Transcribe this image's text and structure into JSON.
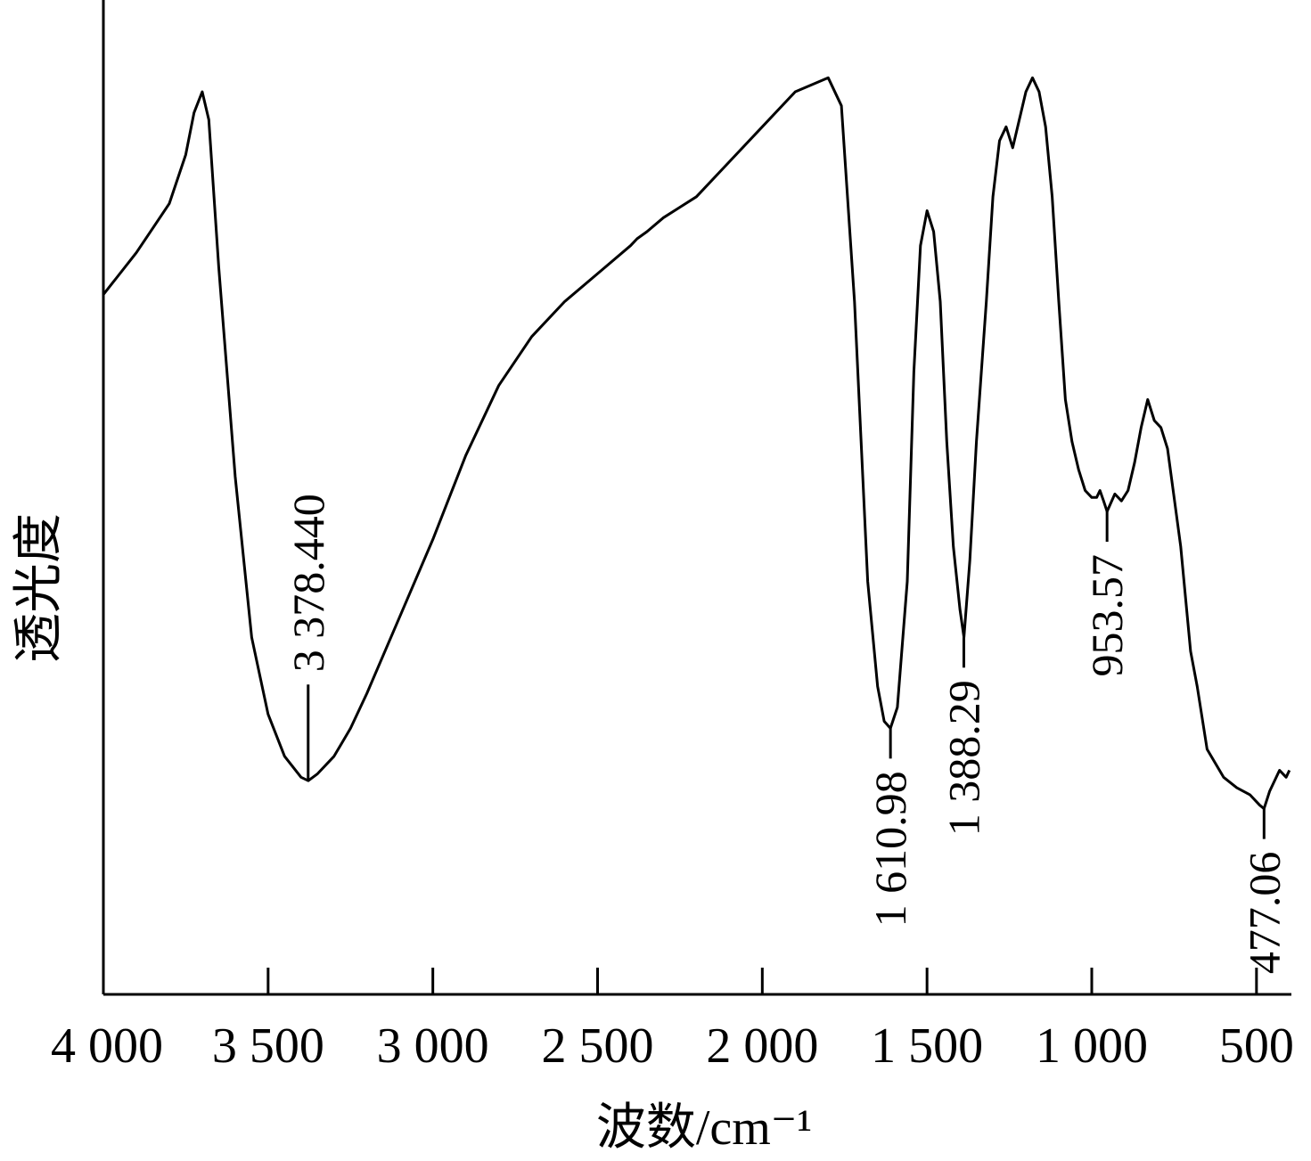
{
  "chart_data": {
    "type": "line",
    "xlabel": "波数/cm⁻¹",
    "ylabel": "透光度",
    "xlim": [
      4000,
      400
    ],
    "x_reversed": true,
    "y_ticks_shown": false,
    "grid": false,
    "xticks": [
      {
        "value": 4000,
        "label": "4 000"
      },
      {
        "value": 3500,
        "label": "3 500"
      },
      {
        "value": 3000,
        "label": "3 000"
      },
      {
        "value": 2500,
        "label": "2 500"
      },
      {
        "value": 2000,
        "label": "2 000"
      },
      {
        "value": 1500,
        "label": "1 500"
      },
      {
        "value": 1000,
        "label": "1 000"
      },
      {
        "value": 500,
        "label": "500"
      }
    ],
    "series": [
      {
        "points": [
          [
            4000,
            71
          ],
          [
            3900,
            77
          ],
          [
            3800,
            84
          ],
          [
            3750,
            91
          ],
          [
            3725,
            97
          ],
          [
            3700,
            100
          ],
          [
            3680,
            96
          ],
          [
            3650,
            75
          ],
          [
            3600,
            45
          ],
          [
            3550,
            22
          ],
          [
            3500,
            11
          ],
          [
            3450,
            5
          ],
          [
            3400,
            2
          ],
          [
            3378,
            1.5
          ],
          [
            3350,
            2.5
          ],
          [
            3300,
            5
          ],
          [
            3250,
            9
          ],
          [
            3200,
            14
          ],
          [
            3100,
            25
          ],
          [
            3000,
            36
          ],
          [
            2900,
            48
          ],
          [
            2800,
            58
          ],
          [
            2700,
            65
          ],
          [
            2600,
            70
          ],
          [
            2500,
            74
          ],
          [
            2400,
            78
          ],
          [
            2380,
            79
          ],
          [
            2350,
            80
          ],
          [
            2300,
            82
          ],
          [
            2200,
            85
          ],
          [
            2100,
            90
          ],
          [
            2000,
            95
          ],
          [
            1900,
            100
          ],
          [
            1800,
            102
          ],
          [
            1760,
            98
          ],
          [
            1720,
            70
          ],
          [
            1700,
            50
          ],
          [
            1680,
            30
          ],
          [
            1650,
            15
          ],
          [
            1630,
            10
          ],
          [
            1611,
            9
          ],
          [
            1590,
            12
          ],
          [
            1560,
            30
          ],
          [
            1540,
            60
          ],
          [
            1520,
            78
          ],
          [
            1500,
            83
          ],
          [
            1480,
            80
          ],
          [
            1460,
            70
          ],
          [
            1440,
            50
          ],
          [
            1420,
            35
          ],
          [
            1400,
            26
          ],
          [
            1388,
            22
          ],
          [
            1370,
            33
          ],
          [
            1350,
            50
          ],
          [
            1320,
            70
          ],
          [
            1300,
            85
          ],
          [
            1280,
            93
          ],
          [
            1260,
            95
          ],
          [
            1240,
            92
          ],
          [
            1220,
            96
          ],
          [
            1200,
            100
          ],
          [
            1180,
            102
          ],
          [
            1160,
            100
          ],
          [
            1140,
            95
          ],
          [
            1120,
            85
          ],
          [
            1100,
            70
          ],
          [
            1080,
            56
          ],
          [
            1060,
            50
          ],
          [
            1040,
            46
          ],
          [
            1020,
            43
          ],
          [
            1000,
            42
          ],
          [
            985,
            42
          ],
          [
            975,
            43
          ],
          [
            964,
            41.5
          ],
          [
            953.57,
            40
          ],
          [
            930,
            42.5
          ],
          [
            910,
            41.5
          ],
          [
            890,
            43
          ],
          [
            870,
            47
          ],
          [
            850,
            52
          ],
          [
            830,
            56
          ],
          [
            810,
            53
          ],
          [
            790,
            52
          ],
          [
            770,
            49
          ],
          [
            750,
            42
          ],
          [
            730,
            35
          ],
          [
            700,
            20
          ],
          [
            680,
            15
          ],
          [
            650,
            6
          ],
          [
            600,
            2
          ],
          [
            560,
            0.5
          ],
          [
            520,
            -0.5
          ],
          [
            490,
            -2
          ],
          [
            477.06,
            -2.5
          ],
          [
            460,
            0
          ],
          [
            430,
            3
          ],
          [
            410,
            2
          ],
          [
            400,
            3
          ]
        ]
      }
    ],
    "annotations": [
      {
        "x": 3378.44,
        "y": 1.5,
        "label": "3 378.440",
        "placement": "above"
      },
      {
        "x": 1610.98,
        "y": 9,
        "label": "1 610.98",
        "placement": "below"
      },
      {
        "x": 1388.29,
        "y": 22,
        "label": "1 388.29",
        "placement": "below"
      },
      {
        "x": 953.57,
        "y": 40,
        "label": "953.57",
        "placement": "below"
      },
      {
        "x": 477.06,
        "y": -2.5,
        "label": "477.06",
        "placement": "below"
      }
    ]
  }
}
